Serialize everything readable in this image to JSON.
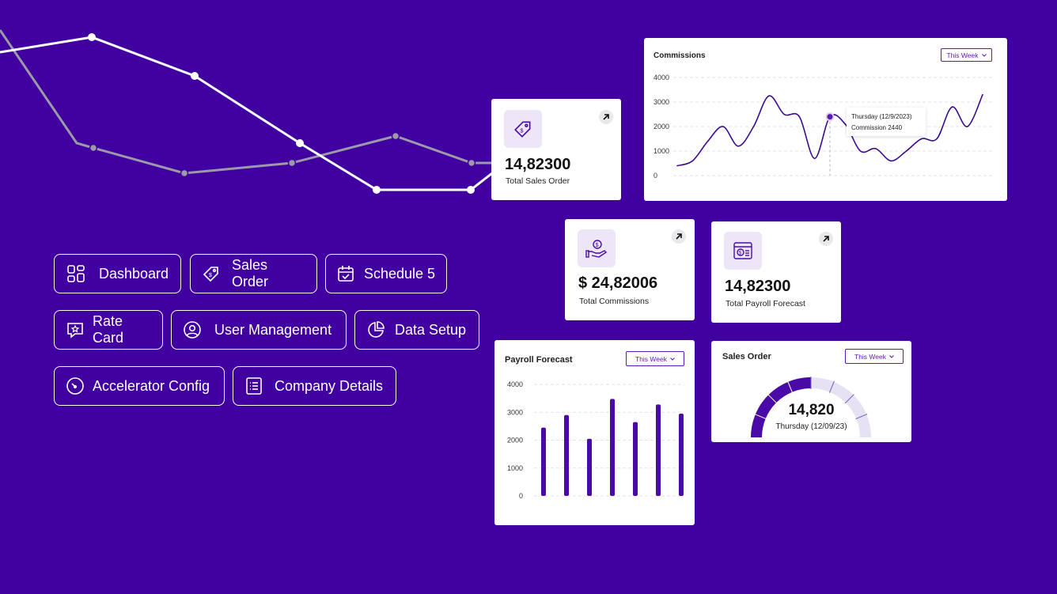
{
  "menu": {
    "row1": [
      {
        "label": "Dashboard",
        "icon": "grid-icon"
      },
      {
        "label": "Sales Order",
        "icon": "tag-icon"
      },
      {
        "label": "Schedule 5",
        "icon": "calendar-check-icon"
      }
    ],
    "row2": [
      {
        "label": "Rate Card",
        "icon": "star-chat-icon"
      },
      {
        "label": "User Management",
        "icon": "user-circle-icon"
      },
      {
        "label": "Data Setup",
        "icon": "pie-icon"
      }
    ],
    "row3": [
      {
        "label": "Accelerator Config",
        "icon": "gauge-icon"
      },
      {
        "label": "Company Details",
        "icon": "list-icon"
      }
    ]
  },
  "kpis": {
    "sales_order": {
      "value": "14,82300",
      "label": "Total Sales Order",
      "icon": "tag-icon"
    },
    "commissions": {
      "value": "$ 24,82006",
      "label": "Total Commissions",
      "icon": "money-hand-icon"
    },
    "payroll": {
      "value": "14,82300",
      "label": "Total Payroll Forecast",
      "icon": "payroll-icon"
    }
  },
  "commissions_card": {
    "title": "Commissions",
    "filter": "This Week",
    "tooltip": {
      "line1": "Thursday (12/9/2023)",
      "line2": "Commission 2440"
    }
  },
  "payroll_card": {
    "title": "Payroll Forecast",
    "filter": "This Week"
  },
  "sales_order_card": {
    "title": "Sales Order",
    "filter": "This Week",
    "gauge_value": "14,820",
    "gauge_date": "Thursday (12/09/23)",
    "gauge_fraction": 0.5
  },
  "chart_data": [
    {
      "type": "line",
      "ylim": [
        0,
        4000
      ],
      "yticks": [
        "4000",
        "3000",
        "2000",
        "1000",
        "0"
      ],
      "y": [
        400,
        600,
        1400,
        2000,
        1200,
        2000,
        3250,
        2500,
        2400,
        700,
        2400,
        2100,
        1000,
        1100,
        600,
        1000,
        1500,
        1500,
        2800,
        2000,
        3300
      ],
      "highlight_index": 10
    },
    {
      "type": "bar",
      "ylim": [
        0,
        4000
      ],
      "yticks": [
        "4000",
        "3000",
        "2000",
        "1000",
        "0"
      ],
      "values": [
        2450,
        2900,
        2050,
        3480,
        2650,
        3280,
        2950
      ]
    }
  ],
  "colors": {
    "background": "#4100a0",
    "accent": "#4a0aa8",
    "accent_light": "#e6e1f3"
  }
}
